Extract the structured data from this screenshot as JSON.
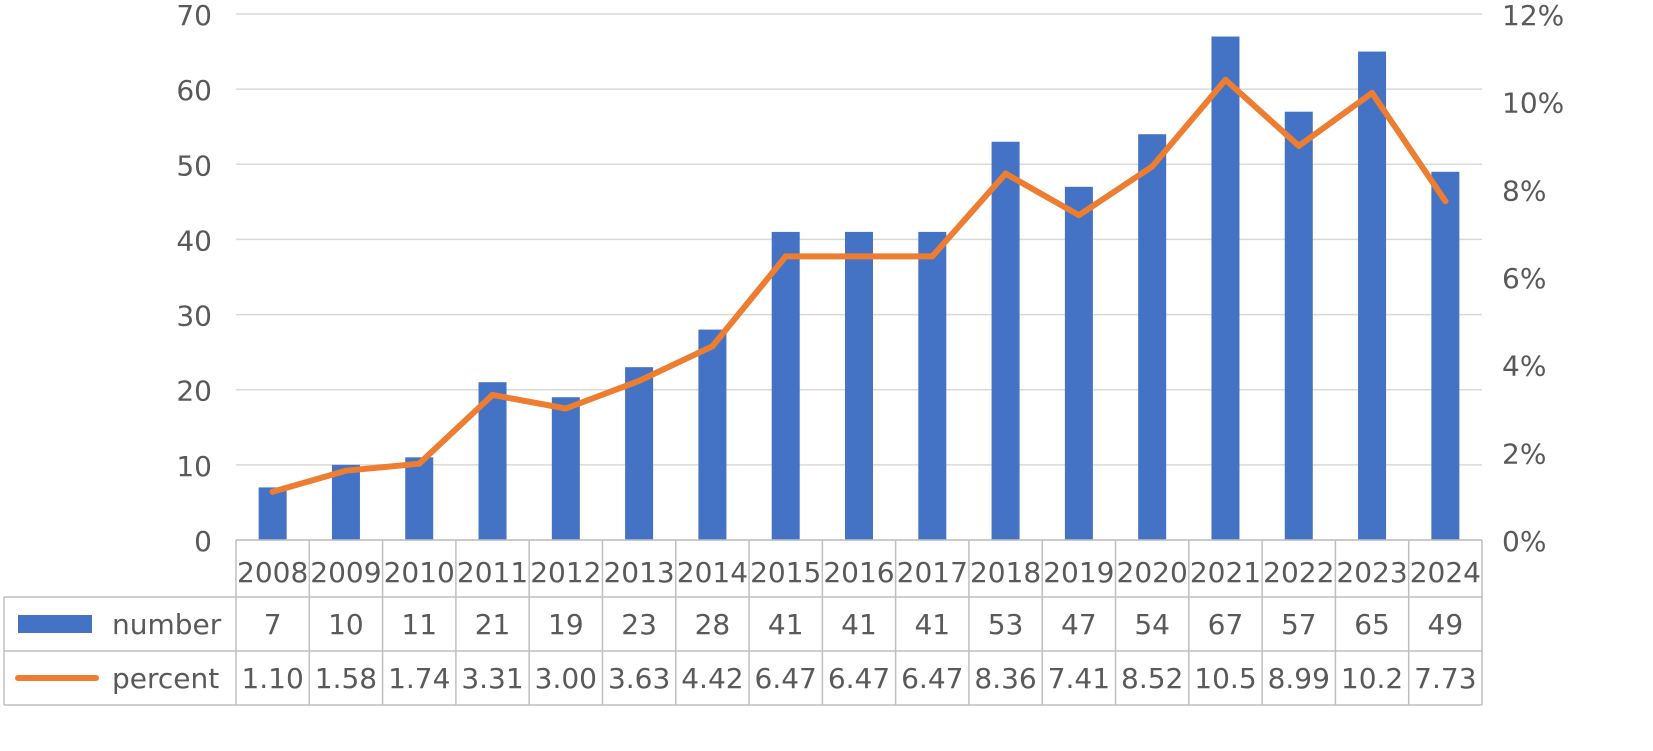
{
  "chart_data": {
    "type": "bar",
    "categories": [
      "2008",
      "2009",
      "2010",
      "2011",
      "2012",
      "2013",
      "2014",
      "2015",
      "2016",
      "2017",
      "2018",
      "2019",
      "2020",
      "2021",
      "2022",
      "2023",
      "2024"
    ],
    "series": [
      {
        "name": "number",
        "type": "bar",
        "axis": "left",
        "color": "#4472C4",
        "values": [
          7,
          10,
          11,
          21,
          19,
          23,
          28,
          41,
          41,
          41,
          53,
          47,
          54,
          67,
          57,
          65,
          49
        ],
        "labels": [
          "7",
          "10",
          "11",
          "21",
          "19",
          "23",
          "28",
          "41",
          "41",
          "41",
          "53",
          "47",
          "54",
          "67",
          "57",
          "65",
          "49"
        ]
      },
      {
        "name": "percent",
        "type": "line",
        "axis": "right",
        "color": "#ED7D31",
        "values": [
          1.1,
          1.58,
          1.74,
          3.31,
          3.0,
          3.63,
          4.42,
          6.47,
          6.47,
          6.47,
          8.36,
          7.41,
          8.52,
          10.5,
          8.99,
          10.2,
          7.73
        ],
        "labels": [
          "1.10",
          "1.58",
          "1.74",
          "3.31",
          "3.00",
          "3.63",
          "4.42",
          "6.47",
          "6.47",
          "6.47",
          "8.36",
          "7.41",
          "8.52",
          "10.5",
          "8.99",
          "10.2",
          "7.73"
        ]
      }
    ],
    "y_left": {
      "ylim": [
        0,
        70
      ],
      "ticks": [
        0,
        10,
        20,
        30,
        40,
        50,
        60,
        70
      ],
      "tick_labels": [
        "0",
        "10",
        "20",
        "30",
        "40",
        "50",
        "60",
        "70"
      ]
    },
    "y_right": {
      "ylim": [
        0,
        12
      ],
      "ticks": [
        0,
        2,
        4,
        6,
        8,
        10,
        12
      ],
      "tick_labels": [
        "0%",
        "2%",
        "4%",
        "6%",
        "8%",
        "10%",
        "12%"
      ]
    },
    "grid": true,
    "legend": "data-table-left",
    "title": "",
    "xlabel": "",
    "ylabel": ""
  }
}
